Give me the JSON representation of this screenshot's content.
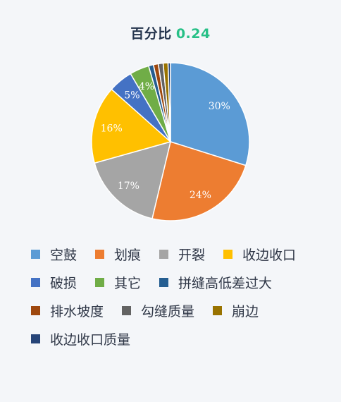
{
  "header": {
    "title": "百分比",
    "value": "0.24"
  },
  "chart_data": {
    "type": "pie",
    "title": "百分比 0.24",
    "slices": [
      {
        "label": "空鼓",
        "value": 30,
        "display": "30%",
        "color": "#5b9bd5"
      },
      {
        "label": "划痕",
        "value": 24,
        "display": "24%",
        "color": "#ed7d31"
      },
      {
        "label": "开裂",
        "value": 17,
        "display": "17%",
        "color": "#a5a5a5"
      },
      {
        "label": "收边收口",
        "value": 16,
        "display": "16%",
        "color": "#ffc000"
      },
      {
        "label": "破损",
        "value": 5,
        "display": "5%",
        "color": "#4472c4"
      },
      {
        "label": "其它",
        "value": 4,
        "display": "4%",
        "color": "#70ad47"
      },
      {
        "label": "拼缝高低差过大",
        "value": 1,
        "display": "",
        "color": "#255e91"
      },
      {
        "label": "排水坡度",
        "value": 1,
        "display": "",
        "color": "#9e480e"
      },
      {
        "label": "勾缝质量",
        "value": 1,
        "display": "",
        "color": "#636363"
      },
      {
        "label": "崩边",
        "value": 1,
        "display": "",
        "color": "#997300"
      },
      {
        "label": "收边收口质量",
        "value": 0.5,
        "display": "",
        "color": "#264478"
      }
    ],
    "legend_position": "bottom"
  }
}
